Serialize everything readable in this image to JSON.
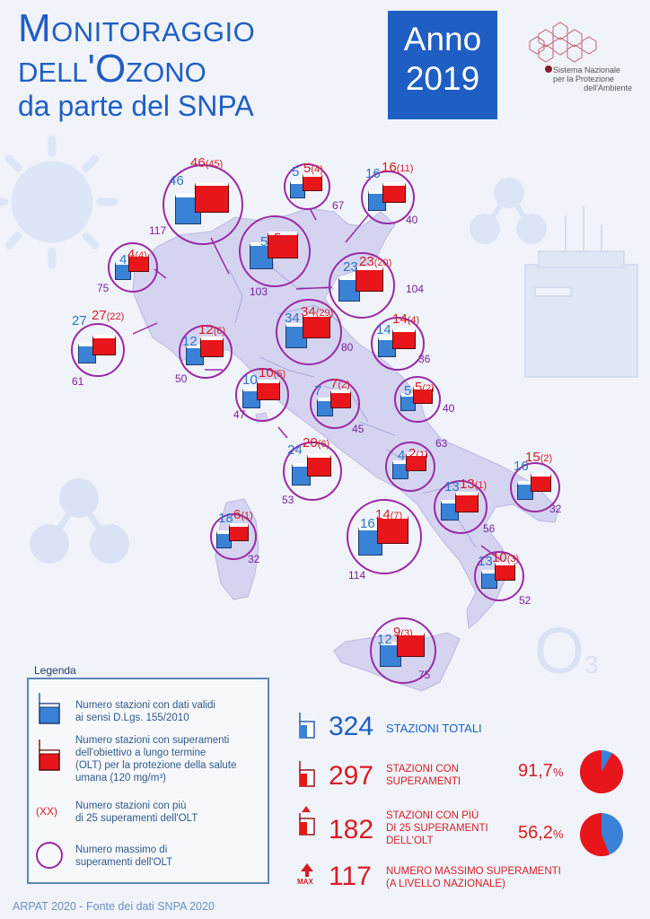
{
  "header": {
    "title_line1": "Monitoraggio",
    "title_line2": "dell'Ozono",
    "title_line3": "da parte del SNPA",
    "year_label": "Anno",
    "year_value": "2019",
    "logo_line1": "Sistema Nazionale",
    "logo_line2": "per la Protezione",
    "logo_line3": "dell'Ambiente",
    "ozone_symbol": "O",
    "ozone_subscript": "3",
    "o_letter": "O"
  },
  "regions": [
    {
      "id": "piemonte",
      "valid": "27",
      "exceed": "27",
      "over25": "(22)",
      "max": "61"
    },
    {
      "id": "valle-daosta",
      "valid": "4",
      "exceed": "4",
      "over25": "(4)",
      "max": "75"
    },
    {
      "id": "lombardia",
      "valid": "46",
      "exceed": "46",
      "over25": "(45)",
      "max": "117"
    },
    {
      "id": "alto-adige",
      "valid": "5",
      "exceed": "5",
      "over25": "(4)",
      "max": "67"
    },
    {
      "id": "trentino",
      "valid": "5",
      "exceed": "5",
      "over25": "(4)",
      "max": "103"
    },
    {
      "id": "friuli",
      "valid": "16",
      "exceed": "16",
      "over25": "(11)",
      "max": "40"
    },
    {
      "id": "veneto",
      "valid": "23",
      "exceed": "23",
      "over25": "(20)",
      "max": "104"
    },
    {
      "id": "liguria",
      "valid": "12",
      "exceed": "12",
      "over25": "(6)",
      "max": "50"
    },
    {
      "id": "emilia-romagna",
      "valid": "34",
      "exceed": "34",
      "over25": "(29)",
      "max": "80"
    },
    {
      "id": "marche",
      "valid": "14",
      "exceed": "14",
      "over25": "(4)",
      "max": "36"
    },
    {
      "id": "toscana",
      "valid": "10",
      "exceed": "10",
      "over25": "(5)",
      "max": "47"
    },
    {
      "id": "umbria",
      "valid": "7",
      "exceed": "7",
      "over25": "(2)",
      "max": "45"
    },
    {
      "id": "abruzzo",
      "valid": "5",
      "exceed": "5",
      "over25": "(2)",
      "max": "40"
    },
    {
      "id": "lazio",
      "valid": "24",
      "exceed": "20",
      "over25": "(6)",
      "max": "53"
    },
    {
      "id": "molise",
      "valid": "4",
      "exceed": "2",
      "over25": "(1)",
      "max": "63"
    },
    {
      "id": "puglia",
      "valid": "16",
      "exceed": "15",
      "over25": "(2)",
      "max": "32"
    },
    {
      "id": "campania",
      "valid": "13",
      "exceed": "13",
      "over25": "(1)",
      "max": "56"
    },
    {
      "id": "sardegna",
      "valid": "18",
      "exceed": "6",
      "over25": "(1)",
      "max": "32"
    },
    {
      "id": "tirreno",
      "valid": "16",
      "exceed": "14",
      "over25": "(7)",
      "max": "114"
    },
    {
      "id": "calabria",
      "valid": "13",
      "exceed": "10",
      "over25": "(3)",
      "max": "52"
    },
    {
      "id": "sicilia",
      "valid": "12",
      "exceed": "9",
      "over25": "(3)",
      "max": "75"
    }
  ],
  "legend": {
    "title": "Legenda",
    "item1_l1": "Numero stazioni con dati validi",
    "item1_l2": "ai sensi D.Lgs. 155/2010",
    "item2_l1": "Numero stazioni con superamenti",
    "item2_l2": "dell'obiettivo a lungo termine",
    "item2_l3": "(OLT) per la protezione della salute",
    "item2_l4": "umana (120 mg/m³)",
    "item3_symbol": "(XX)",
    "item3_l1": "Numero stazioni con più",
    "item3_l2": "di 25 superamenti dell'OLT",
    "item4_l1": "Numero massimo di",
    "item4_l2": "superamenti dell'OLT"
  },
  "stats": {
    "total_num": "324",
    "total_label": "STAZIONI TOTALI",
    "exceed_num": "297",
    "exceed_l1": "STAZIONI CON",
    "exceed_l2": "SUPERAMENTI",
    "exceed_pct": "91,7",
    "over25_num": "182",
    "over25_l1": "STAZIONI CON PIÙ",
    "over25_l2": "DI 25 SUPERAMENTI",
    "over25_l3": "DELL'OLT",
    "over25_pct": "56,2",
    "pct_sign": "%",
    "max_num": "117",
    "max_l1": "NUMERO MASSIMO SUPERAMENTI",
    "max_l2": "(A LIVELLO NAZIONALE)",
    "max_icon_label": "MAX"
  },
  "pies": {
    "exceed_fraction": 0.917,
    "over25_fraction": 0.562,
    "red": "#e8161b",
    "blue": "#3a82d6"
  },
  "colors": {
    "accent_blue": "#1f5fc4",
    "red": "#d71d24",
    "purple": "#9a2aa5",
    "map_fill": "#d4d4f1"
  },
  "footer": {
    "text": "ARPAT 2020  -  Fonte dei dati SNPA 2020"
  }
}
